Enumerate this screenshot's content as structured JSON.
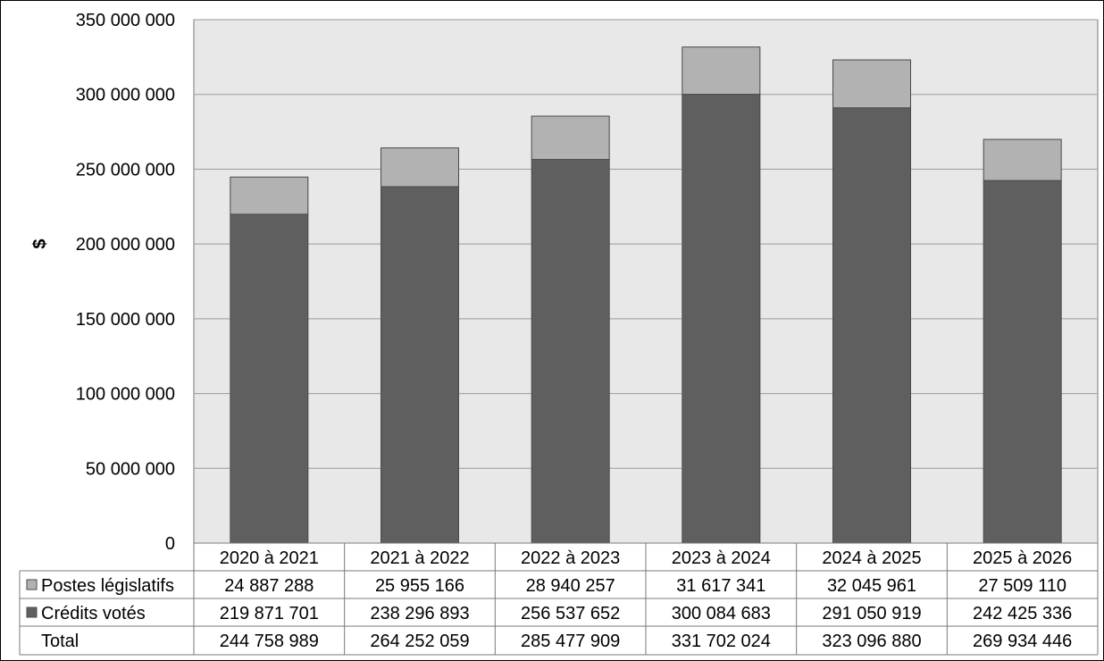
{
  "chart_data": {
    "type": "bar",
    "stacked": true,
    "title": "",
    "xlabel": "",
    "ylabel": "$",
    "ylim": [
      0,
      350000000
    ],
    "yticks": [
      0,
      50000000,
      100000000,
      150000000,
      200000000,
      250000000,
      300000000,
      350000000
    ],
    "ytick_labels": [
      "0",
      "50 000 000",
      "100 000 000",
      "150 000 000",
      "200 000 000",
      "250 000 000",
      "300 000 000",
      "350 000 000"
    ],
    "grid": true,
    "categories": [
      "2020 à 2021",
      "2021 à 2022",
      "2022 à 2023",
      "2023 à 2024",
      "2024 à 2025",
      "2025 à 2026"
    ],
    "series": [
      {
        "name": "Crédits votés",
        "color": "#5f5f5f",
        "values": [
          219871701,
          238296893,
          256537652,
          300084683,
          291050919,
          242425336
        ],
        "labels": [
          "219 871 701",
          "238 296 893",
          "256 537 652",
          "300 084 683",
          "291 050 919",
          "242 425 336"
        ]
      },
      {
        "name": "Postes législatifs",
        "color": "#b2b2b2",
        "values": [
          24887288,
          25955166,
          28940257,
          31617341,
          32045961,
          27509110
        ],
        "labels": [
          "24 887 288",
          "25 955 166",
          "28 940 257",
          "31 617 341",
          "32 045 961",
          "27 509 110"
        ]
      }
    ],
    "total": {
      "name": "Total",
      "values": [
        244758989,
        264252059,
        285477909,
        331702024,
        323096880,
        269934446
      ],
      "labels": [
        "244 758 989",
        "264 252 059",
        "285 477 909",
        "331 702 024",
        "323 096 880",
        "269 934 446"
      ]
    },
    "table_rows": [
      "Postes législatifs",
      "Crédits votés",
      "Total"
    ],
    "plot_background": "#e8e8e8",
    "grid_color": "#9a9a9a"
  }
}
